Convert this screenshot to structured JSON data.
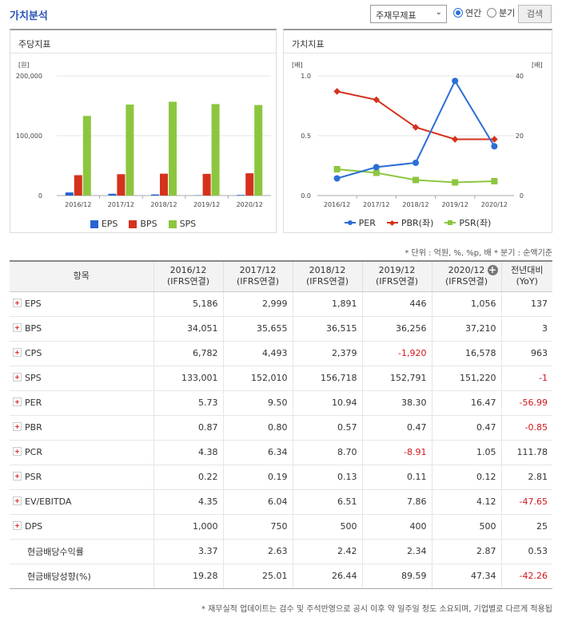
{
  "header": {
    "title": "가치분석",
    "select_value": "주재무제표",
    "radio_annual": "연간",
    "radio_quarter": "분기",
    "search_label": "검색"
  },
  "left_panel": {
    "title": "주당지표",
    "chart_data": {
      "type": "bar",
      "unit_label": "[원]",
      "categories": [
        "2016/12",
        "2017/12",
        "2018/12",
        "2019/12",
        "2020/12"
      ],
      "ylim": [
        0,
        200000
      ],
      "yticks": [
        "200,000",
        "100,000",
        "0"
      ],
      "series": [
        {
          "name": "EPS",
          "color": "#2763d3",
          "values": [
            5186,
            2999,
            1891,
            446,
            1056
          ]
        },
        {
          "name": "BPS",
          "color": "#d5321c",
          "values": [
            34051,
            35655,
            36515,
            36256,
            37210
          ]
        },
        {
          "name": "SPS",
          "color": "#8cc63f",
          "values": [
            133001,
            152010,
            156718,
            152791,
            151220
          ]
        }
      ]
    }
  },
  "right_panel": {
    "title": "가치지표",
    "chart_data": {
      "type": "line",
      "left_unit": "[배]",
      "right_unit": "[배]",
      "categories": [
        "2016/12",
        "2017/12",
        "2018/12",
        "2019/12",
        "2020/12"
      ],
      "left_ylim": [
        0,
        1.0
      ],
      "left_yticks": [
        "1.0",
        "0.5",
        "0.0"
      ],
      "right_ylim": [
        0,
        40
      ],
      "right_yticks": [
        "40",
        "20",
        "0"
      ],
      "series": [
        {
          "name": "PER",
          "axis": "right",
          "color": "#2a6fd6",
          "marker": "circle",
          "values": [
            5.73,
            9.5,
            10.94,
            38.3,
            16.47
          ]
        },
        {
          "name": "PBR(좌)",
          "axis": "left",
          "color": "#d5321c",
          "marker": "diamond",
          "values": [
            0.87,
            0.8,
            0.57,
            0.47,
            0.47
          ]
        },
        {
          "name": "PSR(좌)",
          "axis": "left",
          "color": "#8cc63f",
          "marker": "square",
          "values": [
            0.22,
            0.19,
            0.13,
            0.11,
            0.12
          ]
        }
      ]
    }
  },
  "notes": "* 단위 : 억원, %, %p, 배   * 분기 : 순액기준",
  "table": {
    "item_header": "항목",
    "columns": [
      {
        "year": "2016/12",
        "basis": "(IFRS연결)"
      },
      {
        "year": "2017/12",
        "basis": "(IFRS연결)"
      },
      {
        "year": "2018/12",
        "basis": "(IFRS연결)"
      },
      {
        "year": "2019/12",
        "basis": "(IFRS연결)"
      },
      {
        "year": "2020/12",
        "basis": "(IFRS연결)"
      }
    ],
    "yoy_header_1": "전년대비",
    "yoy_header_2": "(YoY)",
    "rows": [
      {
        "label": "EPS",
        "expandable": true,
        "values": [
          "5,186",
          "2,999",
          "1,891",
          "446",
          "1,056"
        ],
        "yoy": "137"
      },
      {
        "label": "BPS",
        "expandable": true,
        "values": [
          "34,051",
          "35,655",
          "36,515",
          "36,256",
          "37,210"
        ],
        "yoy": "3"
      },
      {
        "label": "CPS",
        "expandable": true,
        "values": [
          "6,782",
          "4,493",
          "2,379",
          "-1,920",
          "16,578"
        ],
        "yoy": "963"
      },
      {
        "label": "SPS",
        "expandable": true,
        "values": [
          "133,001",
          "152,010",
          "156,718",
          "152,791",
          "151,220"
        ],
        "yoy": "-1"
      },
      {
        "label": "PER",
        "expandable": true,
        "values": [
          "5.73",
          "9.50",
          "10.94",
          "38.30",
          "16.47"
        ],
        "yoy": "-56.99"
      },
      {
        "label": "PBR",
        "expandable": true,
        "values": [
          "0.87",
          "0.80",
          "0.57",
          "0.47",
          "0.47"
        ],
        "yoy": "-0.85"
      },
      {
        "label": "PCR",
        "expandable": true,
        "values": [
          "4.38",
          "6.34",
          "8.70",
          "-8.91",
          "1.05"
        ],
        "yoy": "111.78"
      },
      {
        "label": "PSR",
        "expandable": true,
        "values": [
          "0.22",
          "0.19",
          "0.13",
          "0.11",
          "0.12"
        ],
        "yoy": "2.81"
      },
      {
        "label": "EV/EBITDA",
        "expandable": true,
        "values": [
          "4.35",
          "6.04",
          "6.51",
          "7.86",
          "4.12"
        ],
        "yoy": "-47.65"
      },
      {
        "label": "DPS",
        "expandable": true,
        "values": [
          "1,000",
          "750",
          "500",
          "400",
          "500"
        ],
        "yoy": "25"
      },
      {
        "label": "현금배당수익률",
        "expandable": false,
        "values": [
          "3.37",
          "2.63",
          "2.42",
          "2.34",
          "2.87"
        ],
        "yoy": "0.53"
      },
      {
        "label": "현금배당성향(%)",
        "expandable": false,
        "values": [
          "19.28",
          "25.01",
          "26.44",
          "89.59",
          "47.34"
        ],
        "yoy": "-42.26"
      }
    ]
  },
  "footnote": "* 재무실적 업데이트는 검수 및 주석반영으로 공시 이후 약 일주일 정도 소요되며, 기업별로 다르게 적용됩"
}
